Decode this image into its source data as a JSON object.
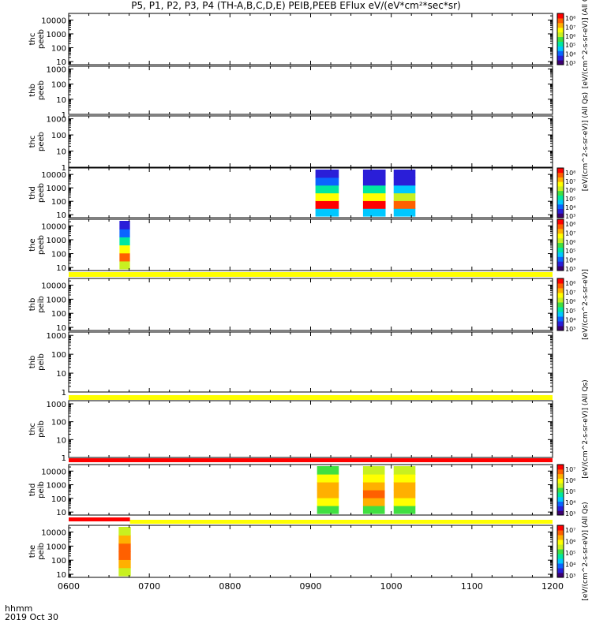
{
  "chart_data": {
    "type": "heatmap",
    "title": "P5, P1, P2, P3, P4 (TH-A,B,C,D,E) PEIB,PEEB EFlux eV/(eV*cm²*sec*sr)",
    "x_ticks": [
      "0600",
      "0700",
      "0800",
      "0900",
      "1000",
      "1100",
      "1200"
    ],
    "x_range": [
      600,
      1200
    ],
    "x_footer": [
      "hhmm",
      "2019 Oct 30"
    ],
    "y_scale": "log",
    "colormap": [
      "#3d0070",
      "#2a1ed8",
      "#0a64ff",
      "#00c8ff",
      "#00e8a0",
      "#40e040",
      "#c8f020",
      "#ffff00",
      "#ffb000",
      "#ff6000",
      "#ff0000"
    ],
    "panels": [
      {
        "name": "the-peeb",
        "label": [
          "thc",
          "peeb"
        ],
        "yticks": [
          "10000",
          "1000",
          "100",
          "10"
        ],
        "ymin": 6,
        "ymax": 30000,
        "colorbar": {
          "labels": [
            "10⁸",
            "10⁷",
            "10⁶",
            "10⁵",
            "10⁴",
            "10³"
          ],
          "title": "[eV/(cm^2-s-sr-eV)] (All Qs)"
        },
        "blocks": []
      },
      {
        "name": "thb-peeb",
        "label": [
          "thb",
          "peeb"
        ],
        "yticks": [
          "1000",
          "100",
          "10",
          "1"
        ],
        "ymin": 1,
        "ymax": 1500,
        "blocks": []
      },
      {
        "name": "thc-peeb",
        "label": [
          "thc",
          "peeb"
        ],
        "yticks": [
          "1000",
          "100",
          "10",
          "1"
        ],
        "ymin": 1,
        "ymax": 1500,
        "colorbar_label": "[eV/(cm^2-s-sr-eV)] (All Qs)",
        "blocks": []
      },
      {
        "name": "thd-peeb",
        "label": [
          "thd",
          "peeb"
        ],
        "yticks": [
          "10000",
          "1000",
          "100",
          "10"
        ],
        "ymin": 6,
        "ymax": 30000,
        "colorbar": {
          "labels": [
            "10⁸",
            "10⁷",
            "10⁶",
            "10⁵",
            "10⁴",
            "10³"
          ]
        },
        "blocks": [
          {
            "x": [
              906,
              935
            ],
            "profile": [
              0.25,
              0.95,
              0.65,
              0.35,
              0.15,
              0.05
            ]
          },
          {
            "x": [
              965,
              993
            ],
            "profile": [
              0.3,
              0.98,
              0.7,
              0.35,
              0.12,
              0.05
            ]
          },
          {
            "x": [
              1003,
              1030
            ],
            "profile": [
              0.3,
              0.85,
              0.6,
              0.3,
              0.12,
              0.05
            ]
          }
        ]
      },
      {
        "name": "the-peeb-2",
        "label": [
          "the",
          "peeb"
        ],
        "yticks": [
          "10000",
          "1000",
          "100",
          "10"
        ],
        "ymin": 6,
        "ymax": 30000,
        "colorbar": {
          "labels": [
            "10⁸",
            "10⁷",
            "10⁶",
            "10⁵",
            "10⁴",
            "10³"
          ]
        },
        "blocks": [
          {
            "x": [
              663,
              676
            ],
            "profile": [
              0.6,
              0.9,
              0.7,
              0.4,
              0.18,
              0.06
            ]
          }
        ]
      },
      {
        "name": "thb-peib-top",
        "label": [
          "thb",
          "peib"
        ],
        "yticks": [
          "10000",
          "1000",
          "100",
          "10"
        ],
        "ymin": 6,
        "ymax": 30000,
        "colorbar": {
          "labels": [
            "10⁸",
            "10⁷",
            "10⁶",
            "10⁵",
            "10⁴",
            "10³"
          ],
          "title": "[eV/(cm^2-s-sr-eV)]"
        },
        "blocks": []
      },
      {
        "name": "thb-peib",
        "label": [
          "thb",
          "peib"
        ],
        "yticks": [
          "1000",
          "100",
          "10",
          "1"
        ],
        "ymin": 1,
        "ymax": 1500,
        "blocks": []
      },
      {
        "name": "thc-peib",
        "label": [
          "thc",
          "peib"
        ],
        "yticks": [
          "1000",
          "100",
          "10",
          "1"
        ],
        "ymin": 1,
        "ymax": 1500,
        "colorbar_label": "[eV/(cm^2-s-sr-eV)] (All Qs)",
        "blocks": []
      },
      {
        "name": "thd-peib",
        "label": [
          "thd",
          "peib"
        ],
        "yticks": [
          "10000",
          "1000",
          "100",
          "10"
        ],
        "ymin": 6,
        "ymax": 30000,
        "colorbar": {
          "labels": [
            "10⁷",
            "10⁶",
            "10⁵",
            "10⁴",
            "10³"
          ]
        },
        "blocks": [
          {
            "x": [
              908,
              935
            ],
            "profile": [
              0.45,
              0.7,
              0.8,
              0.75,
              0.65,
              0.5
            ]
          },
          {
            "x": [
              965,
              992
            ],
            "profile": [
              0.45,
              0.75,
              0.85,
              0.8,
              0.7,
              0.55
            ]
          },
          {
            "x": [
              1003,
              1030
            ],
            "profile": [
              0.45,
              0.7,
              0.8,
              0.78,
              0.68,
              0.55
            ]
          }
        ]
      },
      {
        "name": "the-peib",
        "label": [
          "the",
          "peib"
        ],
        "yticks": [
          "10000",
          "1000",
          "100",
          "10"
        ],
        "ymin": 6,
        "ymax": 30000,
        "colorbar": {
          "labels": [
            "10⁷",
            "10⁶",
            "10⁵",
            "10⁴",
            "10³"
          ],
          "title": "[eV/(cm^2-s-sr-eV)] (All Qs)"
        },
        "blocks": [
          {
            "x": [
              662,
              677
            ],
            "profile": [
              0.55,
              0.75,
              0.9,
              0.85,
              0.75,
              0.6
            ]
          }
        ]
      }
    ],
    "flag_bars": [
      {
        "after_panel": 4,
        "color": "#ffff00",
        "x": [
          600,
          1200
        ]
      },
      {
        "after_panel": 6,
        "color": "#ffff00",
        "x": [
          600,
          1200
        ]
      },
      {
        "after_panel": 7,
        "color": "#ff0000",
        "x": [
          600,
          1200
        ]
      },
      {
        "after_panel": 8,
        "color": "#ffff00",
        "x": [
          676,
          1200
        ]
      },
      {
        "after_panel": 8,
        "color": "#ff0000",
        "x": [
          600,
          676
        ],
        "sub": "upper"
      }
    ]
  }
}
